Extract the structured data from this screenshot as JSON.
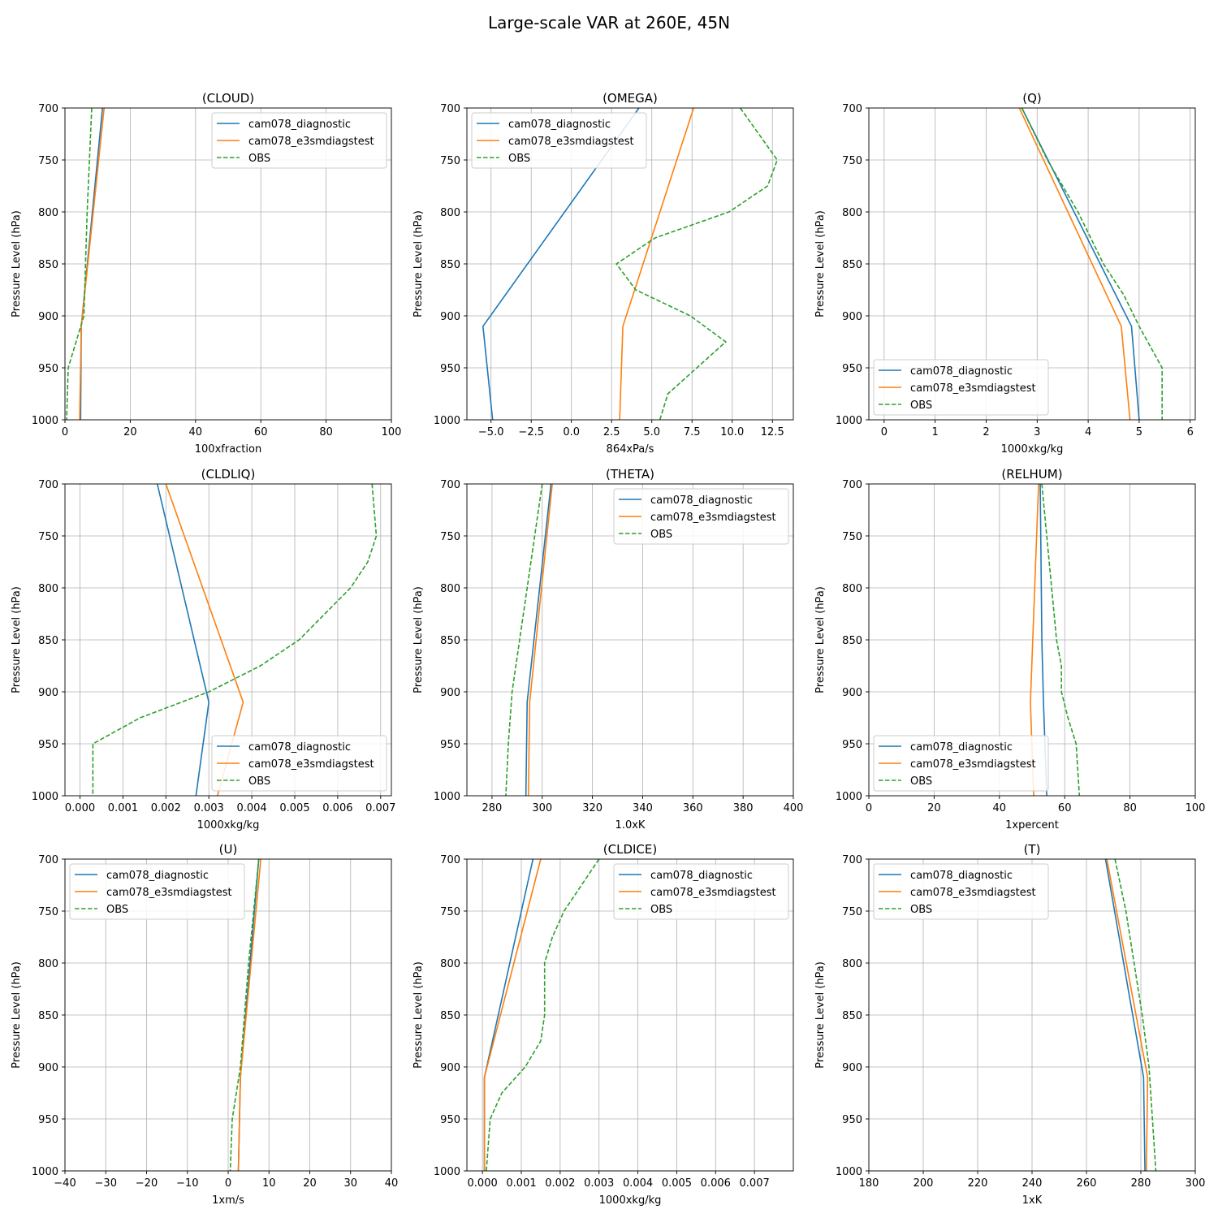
{
  "figure": {
    "title": "Large-scale VAR at 260E, 45N",
    "ylabel": "Pressure Level (hPa)",
    "ylim": [
      1000,
      700
    ],
    "yticks": [
      700,
      750,
      800,
      850,
      900,
      950,
      1000
    ],
    "series_names": [
      "cam078_diagnostic",
      "cam078_e3smdiagstest",
      "OBS"
    ],
    "colors": {
      "diag": "#1f77b4",
      "test": "#ff7f0e",
      "obs": "#2ca02c",
      "grid": "#b0b0b0"
    }
  },
  "chart_data": [
    {
      "type": "line",
      "title": "(CLOUD)",
      "xlabel": "100xfraction",
      "xlim": [
        0,
        100
      ],
      "xticks": [
        0,
        20,
        40,
        60,
        80,
        100
      ],
      "xtick_labels": [
        "0",
        "20",
        "40",
        "60",
        "80",
        "100"
      ],
      "legend": "upper-right",
      "series": [
        {
          "name": "cam078_diagnostic",
          "style": "solid",
          "x": [
            11.5,
            5.0,
            4.8
          ],
          "y": [
            700,
            910,
            1000
          ]
        },
        {
          "name": "cam078_e3smdiagstest",
          "style": "solid",
          "x": [
            12.0,
            5.0,
            4.5
          ],
          "y": [
            700,
            910,
            1000
          ]
        },
        {
          "name": "OBS",
          "style": "dashed",
          "x": [
            8.2,
            7.5,
            6.8,
            6.3,
            5.8,
            1.0,
            0.5
          ],
          "y": [
            700,
            750,
            800,
            850,
            900,
            950,
            1000
          ]
        }
      ]
    },
    {
      "type": "line",
      "title": "(OMEGA)",
      "xlabel": "864xPa/s",
      "xlim": [
        -6.5,
        13.8
      ],
      "xticks": [
        -5,
        -2.5,
        0,
        2.5,
        5,
        7.5,
        10,
        12.5
      ],
      "xtick_labels": [
        "−5.0",
        "−2.5",
        "0.0",
        "2.5",
        "5.0",
        "7.5",
        "10.0",
        "12.5"
      ],
      "legend": "upper-left",
      "series": [
        {
          "name": "cam078_diagnostic",
          "style": "solid",
          "x": [
            4.2,
            -5.5,
            -4.9
          ],
          "y": [
            700,
            910,
            1000
          ]
        },
        {
          "name": "cam078_e3smdiagstest",
          "style": "solid",
          "x": [
            7.6,
            3.2,
            3.0
          ],
          "y": [
            700,
            910,
            1000
          ]
        },
        {
          "name": "OBS",
          "style": "dashed",
          "x": [
            10.5,
            12.8,
            12.2,
            9.8,
            5.2,
            2.8,
            4.0,
            7.4,
            9.6,
            6.0,
            5.5
          ],
          "y": [
            700,
            750,
            775,
            800,
            825,
            850,
            875,
            900,
            925,
            975,
            1000
          ]
        }
      ]
    },
    {
      "type": "line",
      "title": "(Q)",
      "xlabel": "1000xkg/kg",
      "xlim": [
        -0.3,
        6.1
      ],
      "xticks": [
        0,
        1,
        2,
        3,
        4,
        5,
        6
      ],
      "xtick_labels": [
        "0",
        "1",
        "2",
        "3",
        "4",
        "5",
        "6"
      ],
      "legend": "lower-left",
      "series": [
        {
          "name": "cam078_diagnostic",
          "style": "solid",
          "x": [
            2.7,
            4.85,
            5.0
          ],
          "y": [
            700,
            910,
            1000
          ]
        },
        {
          "name": "cam078_e3smdiagstest",
          "style": "solid",
          "x": [
            2.65,
            4.65,
            4.82
          ],
          "y": [
            700,
            910,
            1000
          ]
        },
        {
          "name": "OBS",
          "style": "dashed",
          "x": [
            2.7,
            3.2,
            3.8,
            4.3,
            4.7,
            5.0,
            5.45,
            5.45
          ],
          "y": [
            700,
            750,
            800,
            850,
            880,
            910,
            950,
            1000
          ]
        }
      ]
    },
    {
      "type": "line",
      "title": "(CLDLIQ)",
      "xlabel": "1000xkg/kg",
      "xlim": [
        -0.00035,
        0.00725
      ],
      "xticks": [
        0,
        0.001,
        0.002,
        0.003,
        0.004,
        0.005,
        0.006,
        0.007
      ],
      "xtick_labels": [
        "0.000",
        "0.001",
        "0.002",
        "0.003",
        "0.004",
        "0.005",
        "0.006",
        "0.007"
      ],
      "legend": "lower-right",
      "series": [
        {
          "name": "cam078_diagnostic",
          "style": "solid",
          "x": [
            0.0018,
            0.003,
            0.0027
          ],
          "y": [
            700,
            910,
            1000
          ]
        },
        {
          "name": "cam078_e3smdiagstest",
          "style": "solid",
          "x": [
            0.002,
            0.0038,
            0.0032
          ],
          "y": [
            700,
            910,
            1000
          ]
        },
        {
          "name": "OBS",
          "style": "dashed",
          "x": [
            0.0068,
            0.0069,
            0.0067,
            0.0063,
            0.0057,
            0.0051,
            0.0042,
            0.003,
            0.0014,
            0.0003,
            0.0003
          ],
          "y": [
            700,
            750,
            775,
            800,
            825,
            850,
            875,
            900,
            925,
            950,
            1000
          ]
        }
      ]
    },
    {
      "type": "line",
      "title": "(THETA)",
      "xlabel": "1.0xK",
      "xlim": [
        270,
        400
      ],
      "xticks": [
        280,
        300,
        320,
        340,
        360,
        380,
        400
      ],
      "xtick_labels": [
        "280",
        "300",
        "320",
        "340",
        "360",
        "380",
        "400"
      ],
      "legend": "upper-right",
      "series": [
        {
          "name": "cam078_diagnostic",
          "style": "solid",
          "x": [
            303.5,
            294,
            293.5
          ],
          "y": [
            700,
            910,
            1000
          ]
        },
        {
          "name": "cam078_e3smdiagstest",
          "style": "solid",
          "x": [
            304,
            295,
            294.5
          ],
          "y": [
            700,
            910,
            1000
          ]
        },
        {
          "name": "OBS",
          "style": "dashed",
          "x": [
            300,
            297,
            294,
            291,
            288,
            286.5,
            285.5
          ],
          "y": [
            700,
            750,
            800,
            850,
            900,
            950,
            1000
          ]
        }
      ]
    },
    {
      "type": "line",
      "title": "(RELHUM)",
      "xlabel": "1xpercent",
      "xlim": [
        0,
        100
      ],
      "xticks": [
        0,
        20,
        40,
        60,
        80,
        100
      ],
      "xtick_labels": [
        "0",
        "20",
        "40",
        "60",
        "80",
        "100"
      ],
      "legend": "lower-left",
      "series": [
        {
          "name": "cam078_diagnostic",
          "style": "solid",
          "x": [
            52.5,
            53,
            53.5,
            54.5
          ],
          "y": [
            700,
            850,
            910,
            1000
          ]
        },
        {
          "name": "cam078_e3smdiagstest",
          "style": "solid",
          "x": [
            52,
            49.5,
            50.5
          ],
          "y": [
            700,
            910,
            1000
          ]
        },
        {
          "name": "OBS",
          "style": "dashed",
          "x": [
            53,
            54.5,
            56,
            57.5,
            59,
            59,
            61,
            63.5,
            64.5
          ],
          "y": [
            700,
            750,
            800,
            850,
            875,
            900,
            925,
            950,
            1000
          ]
        }
      ]
    },
    {
      "type": "line",
      "title": "(U)",
      "xlabel": "1xm/s",
      "xlim": [
        -40,
        40
      ],
      "xticks": [
        -40,
        -30,
        -20,
        -10,
        0,
        10,
        20,
        30,
        40
      ],
      "xtick_labels": [
        "−40",
        "−30",
        "−20",
        "−10",
        "0",
        "10",
        "20",
        "30",
        "40"
      ],
      "legend": "upper-left",
      "series": [
        {
          "name": "cam078_diagnostic",
          "style": "solid",
          "x": [
            7.5,
            3.0,
            2.5
          ],
          "y": [
            700,
            910,
            1000
          ]
        },
        {
          "name": "cam078_e3smdiagstest",
          "style": "solid",
          "x": [
            8.0,
            3.0,
            2.5
          ],
          "y": [
            700,
            910,
            1000
          ]
        },
        {
          "name": "OBS",
          "style": "dashed",
          "x": [
            7.5,
            5.0,
            3.0,
            1.0,
            0.5
          ],
          "y": [
            700,
            800,
            900,
            950,
            1000
          ]
        }
      ]
    },
    {
      "type": "line",
      "title": "(CLDICE)",
      "xlabel": "1000xkg/kg",
      "xlim": [
        -0.0004,
        0.008
      ],
      "xticks": [
        0,
        0.001,
        0.002,
        0.003,
        0.004,
        0.005,
        0.006,
        0.007
      ],
      "xtick_labels": [
        "0.000",
        "0.001",
        "0.002",
        "0.003",
        "0.004",
        "0.005",
        "0.006",
        "0.007"
      ],
      "legend": "upper-right",
      "series": [
        {
          "name": "cam078_diagnostic",
          "style": "solid",
          "x": [
            0.0013,
            5e-05,
            5e-05
          ],
          "y": [
            700,
            910,
            1000
          ]
        },
        {
          "name": "cam078_e3smdiagstest",
          "style": "solid",
          "x": [
            0.0015,
            5e-05,
            5e-05
          ],
          "y": [
            700,
            910,
            1000
          ]
        },
        {
          "name": "OBS",
          "style": "dashed",
          "x": [
            0.003,
            0.0021,
            0.0018,
            0.0016,
            0.0016,
            0.0015,
            0.0011,
            0.0005,
            0.0002,
            0.0001
          ],
          "y": [
            700,
            750,
            775,
            800,
            850,
            875,
            900,
            925,
            950,
            1000
          ]
        }
      ]
    },
    {
      "type": "line",
      "title": "(T)",
      "xlabel": "1xK",
      "xlim": [
        180,
        300
      ],
      "xticks": [
        180,
        200,
        220,
        240,
        260,
        280,
        300
      ],
      "xtick_labels": [
        "180",
        "200",
        "220",
        "240",
        "260",
        "280",
        "300"
      ],
      "legend": "upper-left",
      "series": [
        {
          "name": "cam078_diagnostic",
          "style": "solid",
          "x": [
            267,
            281,
            281.5
          ],
          "y": [
            700,
            910,
            1000
          ]
        },
        {
          "name": "cam078_e3smdiagstest",
          "style": "solid",
          "x": [
            267.5,
            282.5,
            282
          ],
          "y": [
            700,
            910,
            1000
          ]
        },
        {
          "name": "OBS",
          "style": "dashed",
          "x": [
            270.5,
            274.5,
            277.5,
            280.5,
            283,
            285.5
          ],
          "y": [
            700,
            750,
            800,
            850,
            900,
            1000
          ]
        }
      ]
    }
  ]
}
